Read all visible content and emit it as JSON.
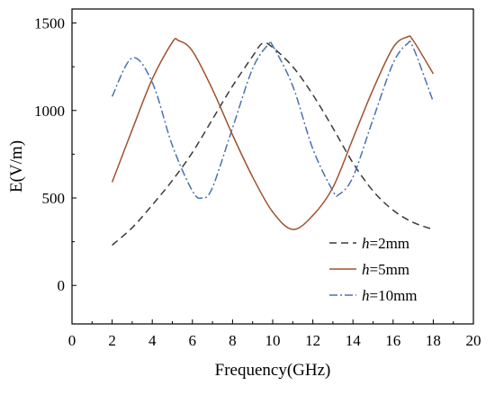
{
  "chart_data": {
    "type": "line",
    "title": "",
    "xlabel": "Frequency(GHz)",
    "ylabel": "E(V/m)",
    "xlim": [
      0,
      20
    ],
    "ylim": [
      -220,
      1580
    ],
    "xticks": [
      0,
      2,
      4,
      6,
      8,
      10,
      12,
      14,
      16,
      18,
      20
    ],
    "yticks": [
      0,
      500,
      1000,
      1500
    ],
    "grid": false,
    "legend_position": "bottom-right",
    "series": [
      {
        "name_prefix": "h",
        "name_suffix": "=2mm",
        "color": "#3a3a3a",
        "dash": "dash",
        "x": [
          2,
          3,
          4,
          5,
          6,
          7,
          8,
          9,
          9.5,
          10,
          11,
          12,
          13,
          14,
          15,
          16,
          17,
          18
        ],
        "y": [
          230,
          330,
          460,
          600,
          760,
          950,
          1140,
          1310,
          1385,
          1360,
          1250,
          1090,
          900,
          700,
          540,
          430,
          360,
          320
        ]
      },
      {
        "name_prefix": "h",
        "name_suffix": "=5mm",
        "color": "#a0522d",
        "dash": "solid",
        "x": [
          2,
          3,
          4,
          5,
          5.3,
          6,
          7,
          8,
          9,
          10,
          11,
          12,
          13,
          14,
          15,
          16,
          16.7,
          17,
          18
        ],
        "y": [
          590,
          890,
          1180,
          1390,
          1400,
          1340,
          1120,
          860,
          620,
          420,
          320,
          400,
          560,
          840,
          1120,
          1360,
          1420,
          1400,
          1210
        ]
      },
      {
        "name_prefix": "h",
        "name_suffix": "=10mm",
        "color": "#4a72b0",
        "dash": "dashdot",
        "x": [
          2,
          3,
          4,
          5,
          6,
          6.5,
          7,
          8,
          9,
          9.8,
          10,
          11,
          12,
          13,
          13.3,
          14,
          15,
          16,
          16.7,
          17,
          18
        ],
        "y": [
          1080,
          1300,
          1160,
          800,
          540,
          500,
          560,
          900,
          1240,
          1380,
          1370,
          1140,
          780,
          540,
          520,
          620,
          950,
          1270,
          1380,
          1360,
          1050
        ]
      }
    ]
  }
}
